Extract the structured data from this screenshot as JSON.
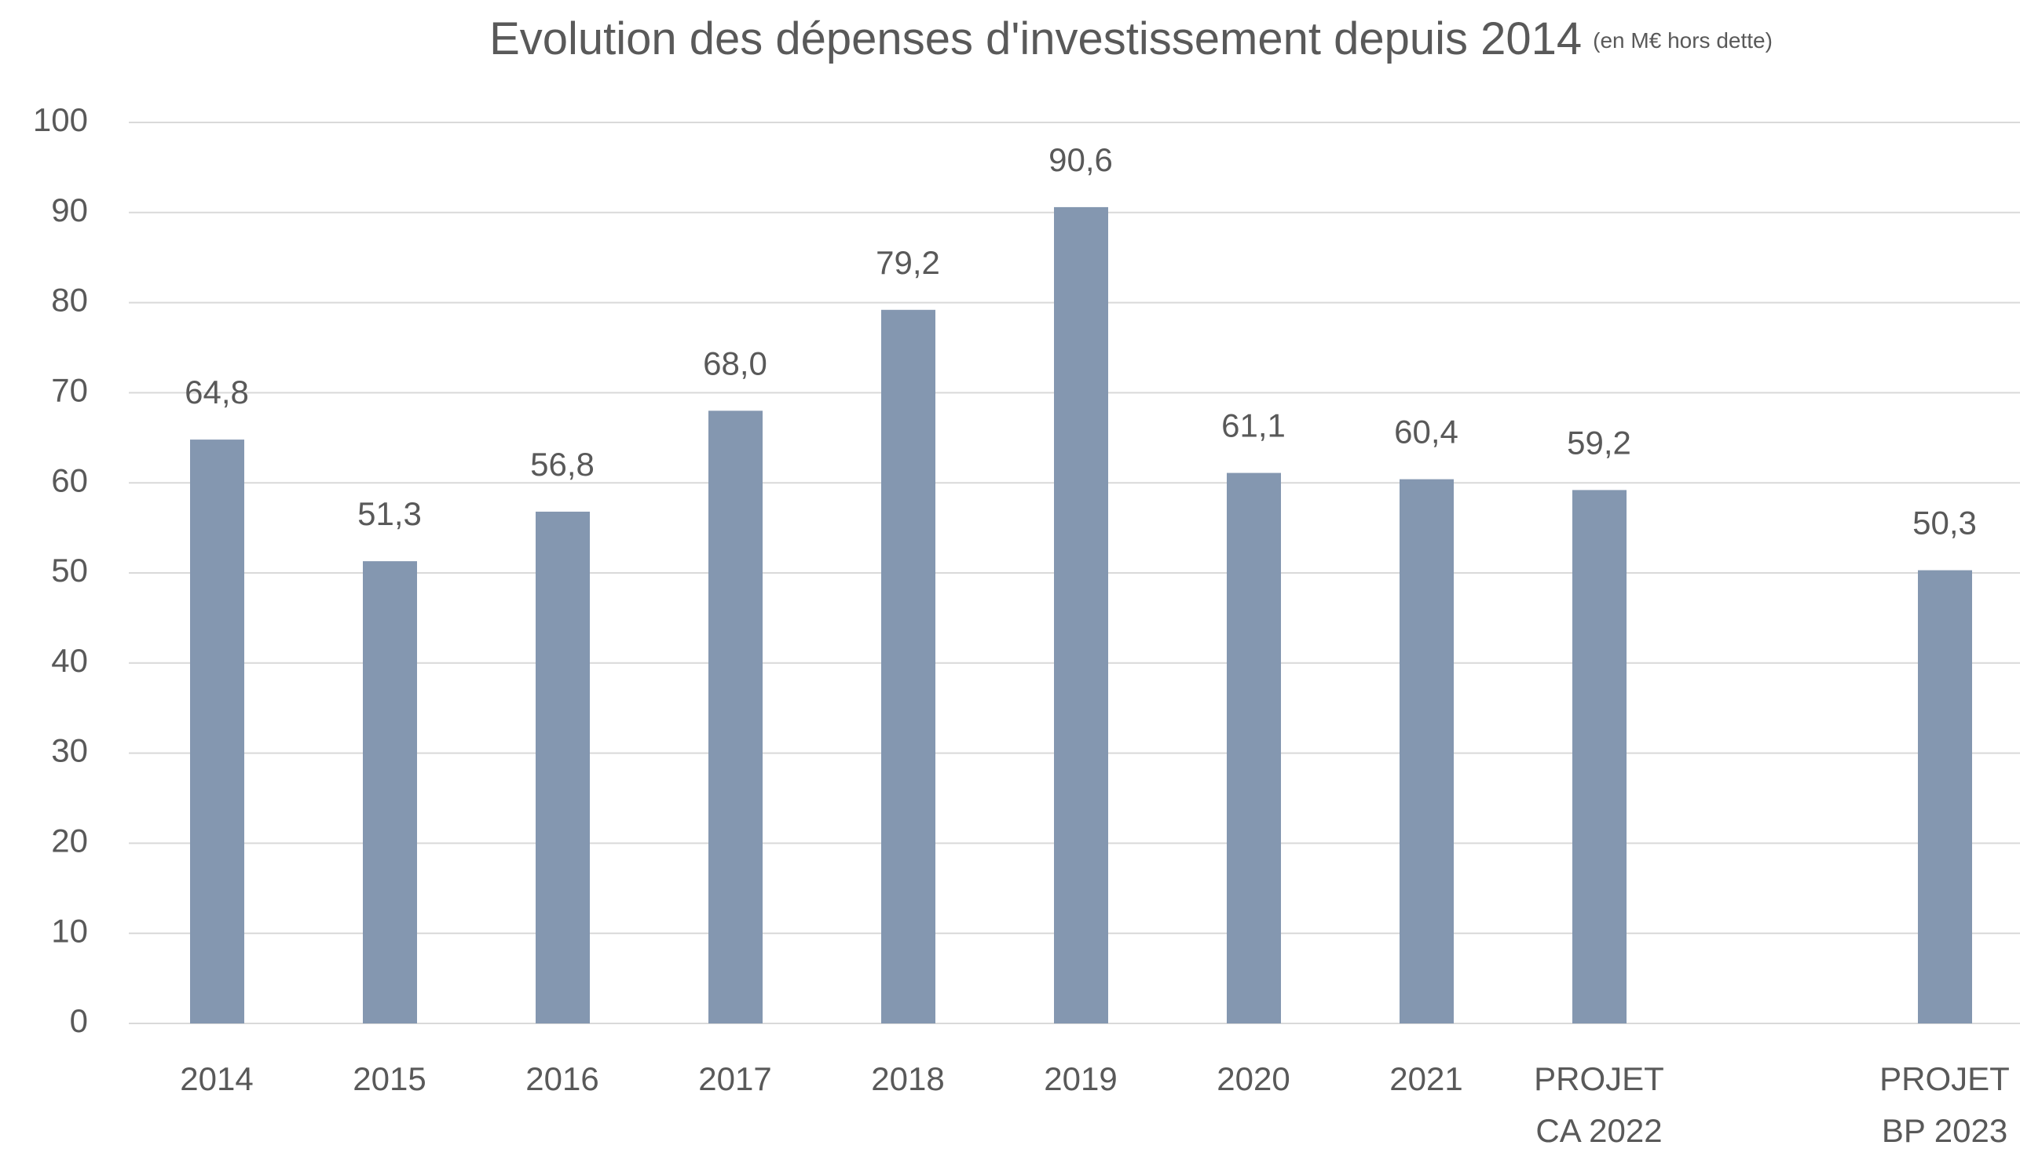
{
  "chart_data": {
    "type": "bar",
    "title": "Evolution des dépenses d'investissement depuis 2014",
    "subtitle": "(en M€ hors dette)",
    "categories": [
      "2014",
      "2015",
      "2016",
      "2017",
      "2018",
      "2019",
      "2020",
      "2021",
      "PROJET\nCA 2022",
      null,
      "PROJET\nBP 2023"
    ],
    "values": [
      64.8,
      51.3,
      56.8,
      68.0,
      79.2,
      90.6,
      61.1,
      60.4,
      59.2,
      null,
      50.3
    ],
    "value_labels": [
      "64,8",
      "51,3",
      "56,8",
      "68,0",
      "79,2",
      "90,6",
      "61,1",
      "60,4",
      "59,2",
      null,
      "50,3"
    ],
    "color": "#8497b0",
    "ylim": [
      0,
      100
    ],
    "yticks": [
      0,
      10,
      20,
      30,
      40,
      50,
      60,
      70,
      80,
      90,
      100
    ],
    "grid": true
  }
}
